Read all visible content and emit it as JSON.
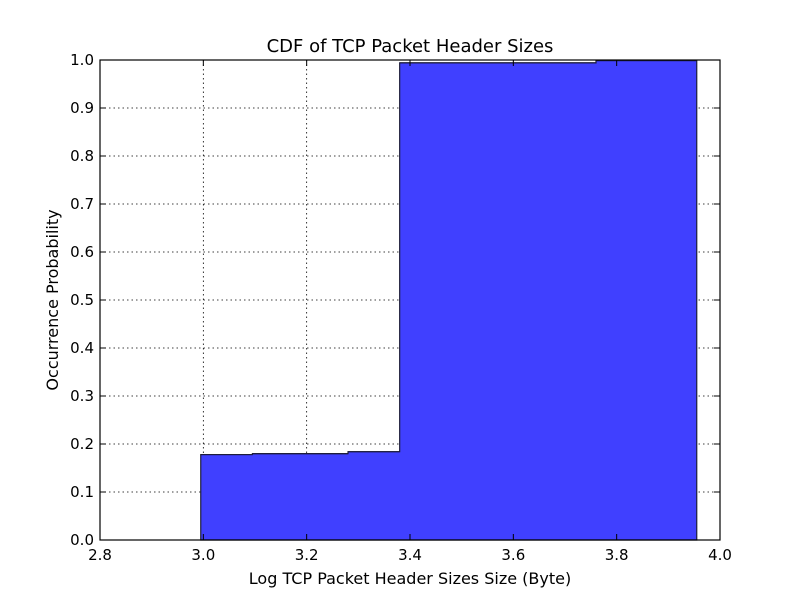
{
  "chart_data": {
    "type": "area",
    "title": "CDF of TCP Packet Header Sizes",
    "xlabel": "Log TCP Packet Header Sizes Size (Byte)",
    "ylabel": "Occurrence Probability",
    "xlim": [
      2.8,
      4.0
    ],
    "ylim": [
      0.0,
      1.0
    ],
    "x_ticks": [
      2.8,
      3.0,
      3.2,
      3.4,
      3.6,
      3.8,
      4.0
    ],
    "x_tick_labels": [
      "2.8",
      "3.0",
      "3.2",
      "3.4",
      "3.6",
      "3.8",
      "4.0"
    ],
    "y_ticks": [
      0.0,
      0.1,
      0.2,
      0.3,
      0.4,
      0.5,
      0.6,
      0.7,
      0.8,
      0.9,
      1.0
    ],
    "y_tick_labels": [
      "0.0",
      "0.1",
      "0.2",
      "0.3",
      "0.4",
      "0.5",
      "0.6",
      "0.7",
      "0.8",
      "0.9",
      "1.0"
    ],
    "grid": true,
    "fill_color": "#4040ff",
    "edge_color": "#1e1e3c",
    "series": [
      {
        "steps": [
          {
            "x0": 2.995,
            "x1": 3.095,
            "y": 0.178
          },
          {
            "x0": 3.095,
            "x1": 3.28,
            "y": 0.18
          },
          {
            "x0": 3.28,
            "x1": 3.38,
            "y": 0.184
          },
          {
            "x0": 3.38,
            "x1": 3.76,
            "y": 0.994
          },
          {
            "x0": 3.76,
            "x1": 3.955,
            "y": 0.999
          }
        ]
      }
    ]
  }
}
